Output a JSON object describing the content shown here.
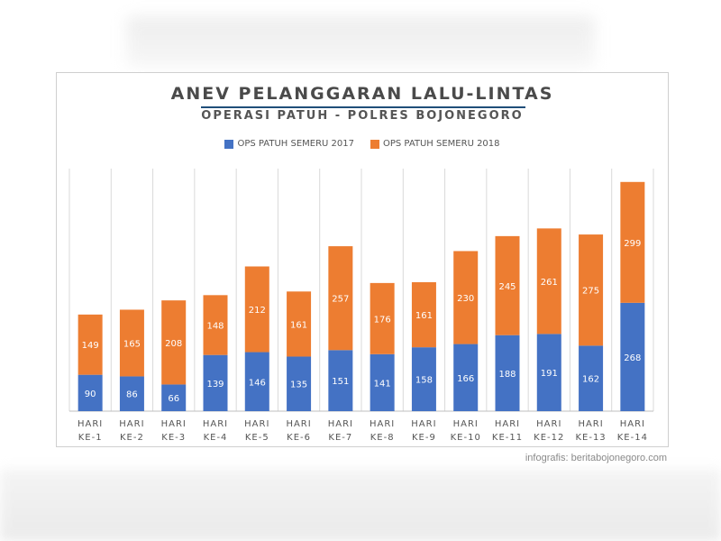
{
  "credit": "infografis: beritabojonegoro.com",
  "chart_data": {
    "type": "bar",
    "stacked": true,
    "title": "ANEV PELANGGARAN LALU-LINTAS",
    "subtitle": "OPERASI PATUH - POLRES BOJONEGORO",
    "categories": [
      [
        "HARI",
        "KE-1"
      ],
      [
        "HARI",
        "KE-2"
      ],
      [
        "HARI",
        "KE-3"
      ],
      [
        "HARI",
        "KE-4"
      ],
      [
        "HARI",
        "KE-5"
      ],
      [
        "HARI",
        "KE-6"
      ],
      [
        "HARI",
        "KE-7"
      ],
      [
        "HARI",
        "KE-8"
      ],
      [
        "HARI",
        "KE-9"
      ],
      [
        "HARI",
        "KE-10"
      ],
      [
        "HARI",
        "KE-11"
      ],
      [
        "HARI",
        "KE-12"
      ],
      [
        "HARI",
        "KE-13"
      ],
      [
        "HARI",
        "KE-14"
      ]
    ],
    "series": [
      {
        "name": "OPS PATUH SEMERU 2017",
        "color": "#4472C4",
        "values": [
          90,
          86,
          66,
          139,
          146,
          135,
          151,
          141,
          158,
          166,
          188,
          191,
          162,
          268
        ]
      },
      {
        "name": "OPS PATUH SEMERU 2018",
        "color": "#ED7D31",
        "values": [
          149,
          165,
          208,
          148,
          212,
          161,
          257,
          176,
          161,
          230,
          245,
          261,
          275,
          299
        ]
      }
    ],
    "ylim": [
      0,
      600
    ],
    "grid": "vertical",
    "legend": "top-center",
    "data_labels": true
  }
}
